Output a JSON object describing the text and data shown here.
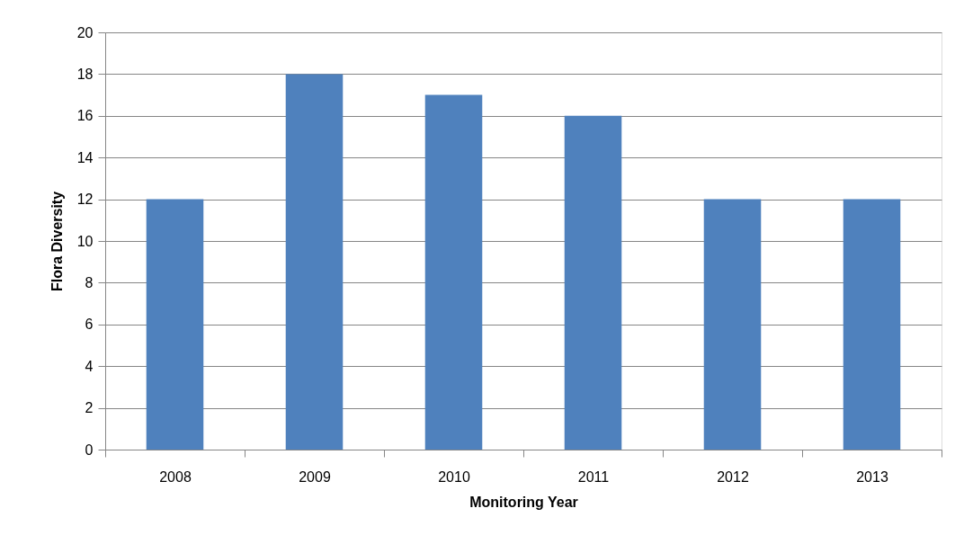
{
  "chart_data": {
    "type": "bar",
    "xlabel": "Monitoring Year",
    "ylabel": "Flora Diversity",
    "categories": [
      "2008",
      "2009",
      "2010",
      "2011",
      "2012",
      "2013"
    ],
    "values": [
      12,
      18,
      17,
      16,
      12,
      12
    ],
    "color": "#4f81bd",
    "ylim": [
      0,
      20
    ],
    "yticks": [
      0,
      2,
      4,
      6,
      8,
      10,
      12,
      14,
      16,
      18,
      20
    ],
    "grid": "y"
  }
}
